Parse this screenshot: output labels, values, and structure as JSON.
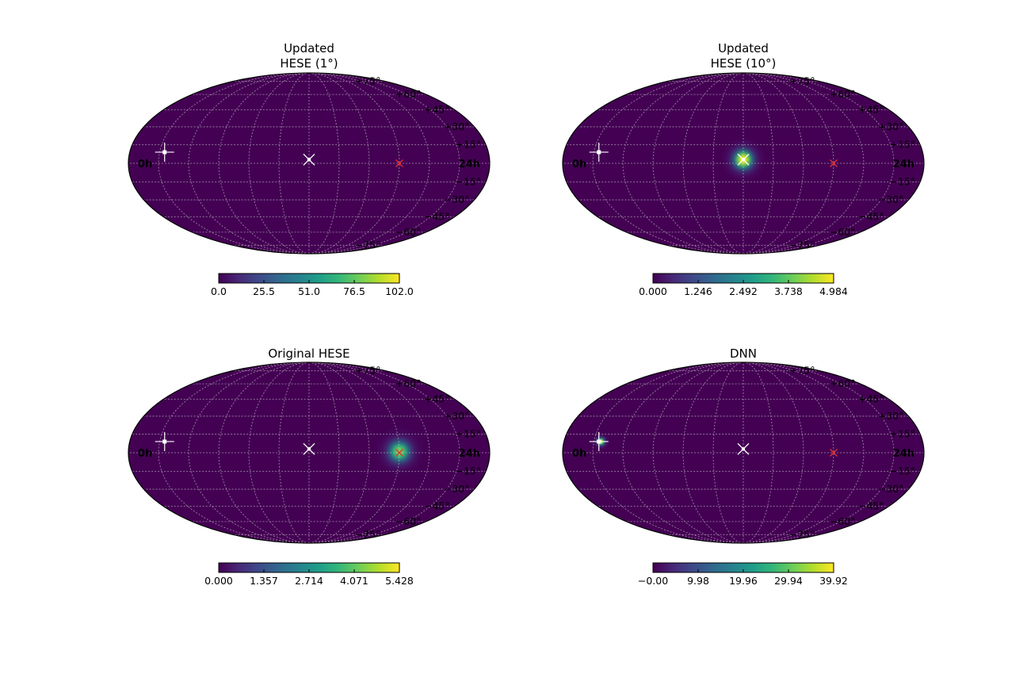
{
  "chart_data": [
    {
      "type": "heatmap",
      "projection": "mollweide",
      "title_lines": [
        "Updated",
        "HESE (1°)"
      ],
      "ra_labels": {
        "left": "24h",
        "right": "0h"
      },
      "dec_labels": [
        "+75°",
        "+60°",
        "+45°",
        "+30°",
        "+15°",
        "−15°",
        "−30°",
        "−45°",
        "−60°",
        "−75°"
      ],
      "grid": true,
      "colormap": "viridis",
      "colorbar": {
        "min": 0.0,
        "max": 102.0,
        "ticks": [
          "0.0",
          "25.5",
          "51.0",
          "76.5",
          "102.0"
        ]
      },
      "hotspot": {
        "ra_deg": 180,
        "dec_deg": 3,
        "sigma_deg": 1.2,
        "peak_fraction": 0.35
      },
      "markers": [
        {
          "type": "x",
          "color": "#e03030",
          "ra_deg": 270,
          "dec_deg": 0
        },
        {
          "type": "x",
          "color": "#ffffff",
          "ra_deg": 180,
          "dec_deg": 3
        },
        {
          "type": "plus",
          "color": "#ffffff",
          "ra_deg": 35,
          "dec_deg": 9
        }
      ]
    },
    {
      "type": "heatmap",
      "projection": "mollweide",
      "title_lines": [
        "Updated",
        "HESE (10°)"
      ],
      "ra_labels": {
        "left": "24h",
        "right": "0h"
      },
      "dec_labels": [
        "+75°",
        "+60°",
        "+45°",
        "+30°",
        "+15°",
        "−15°",
        "−30°",
        "−45°",
        "−60°",
        "−75°"
      ],
      "grid": true,
      "colormap": "viridis",
      "colorbar": {
        "min": 0.0,
        "max": 4.984,
        "ticks": [
          "0.000",
          "1.246",
          "2.492",
          "3.738",
          "4.984"
        ]
      },
      "hotspot": {
        "ra_deg": 180,
        "dec_deg": 3,
        "sigma_deg": 9,
        "peak_fraction": 1.0
      },
      "markers": [
        {
          "type": "x",
          "color": "#e03030",
          "ra_deg": 270,
          "dec_deg": 0
        },
        {
          "type": "x",
          "color": "#ffffff",
          "ra_deg": 180,
          "dec_deg": 3
        },
        {
          "type": "plus",
          "color": "#ffffff",
          "ra_deg": 35,
          "dec_deg": 9
        }
      ]
    },
    {
      "type": "heatmap",
      "projection": "mollweide",
      "title_lines": [
        "Original HESE"
      ],
      "ra_labels": {
        "left": "24h",
        "right": "0h"
      },
      "dec_labels": [
        "+75°",
        "+60°",
        "+45°",
        "+30°",
        "+15°",
        "−15°",
        "−30°",
        "−45°",
        "−60°",
        "−75°"
      ],
      "grid": true,
      "colormap": "viridis",
      "colorbar": {
        "min": 0.0,
        "max": 5.428,
        "ticks": [
          "0.000",
          "1.357",
          "2.714",
          "4.071",
          "5.428"
        ]
      },
      "hotspot": {
        "ra_deg": 270,
        "dec_deg": 1,
        "sigma_deg": 10,
        "peak_fraction": 0.8
      },
      "markers": [
        {
          "type": "x",
          "color": "#e03030",
          "ra_deg": 270,
          "dec_deg": 0
        },
        {
          "type": "x",
          "color": "#ffffff",
          "ra_deg": 180,
          "dec_deg": 3
        },
        {
          "type": "plus",
          "color": "#ffffff",
          "ra_deg": 35,
          "dec_deg": 9
        }
      ]
    },
    {
      "type": "heatmap",
      "projection": "mollweide",
      "title_lines": [
        "DNN"
      ],
      "ra_labels": {
        "left": "24h",
        "right": "0h"
      },
      "dec_labels": [
        "+75°",
        "+60°",
        "+45°",
        "+30°",
        "+15°",
        "−15°",
        "−30°",
        "−45°",
        "−60°",
        "−75°"
      ],
      "grid": true,
      "colormap": "viridis",
      "colorbar": {
        "min": 0.0,
        "max": 39.92,
        "ticks": [
          "−0.00",
          "9.98",
          "19.96",
          "29.94",
          "39.92"
        ]
      },
      "hotspot": {
        "ra_deg": 37,
        "dec_deg": 9,
        "sigma_deg": 3.5,
        "peak_fraction": 1.0
      },
      "markers": [
        {
          "type": "x",
          "color": "#e03030",
          "ra_deg": 270,
          "dec_deg": 0
        },
        {
          "type": "x",
          "color": "#ffffff",
          "ra_deg": 180,
          "dec_deg": 3
        },
        {
          "type": "plus",
          "color": "#ffffff",
          "ra_deg": 35,
          "dec_deg": 9
        }
      ]
    }
  ]
}
